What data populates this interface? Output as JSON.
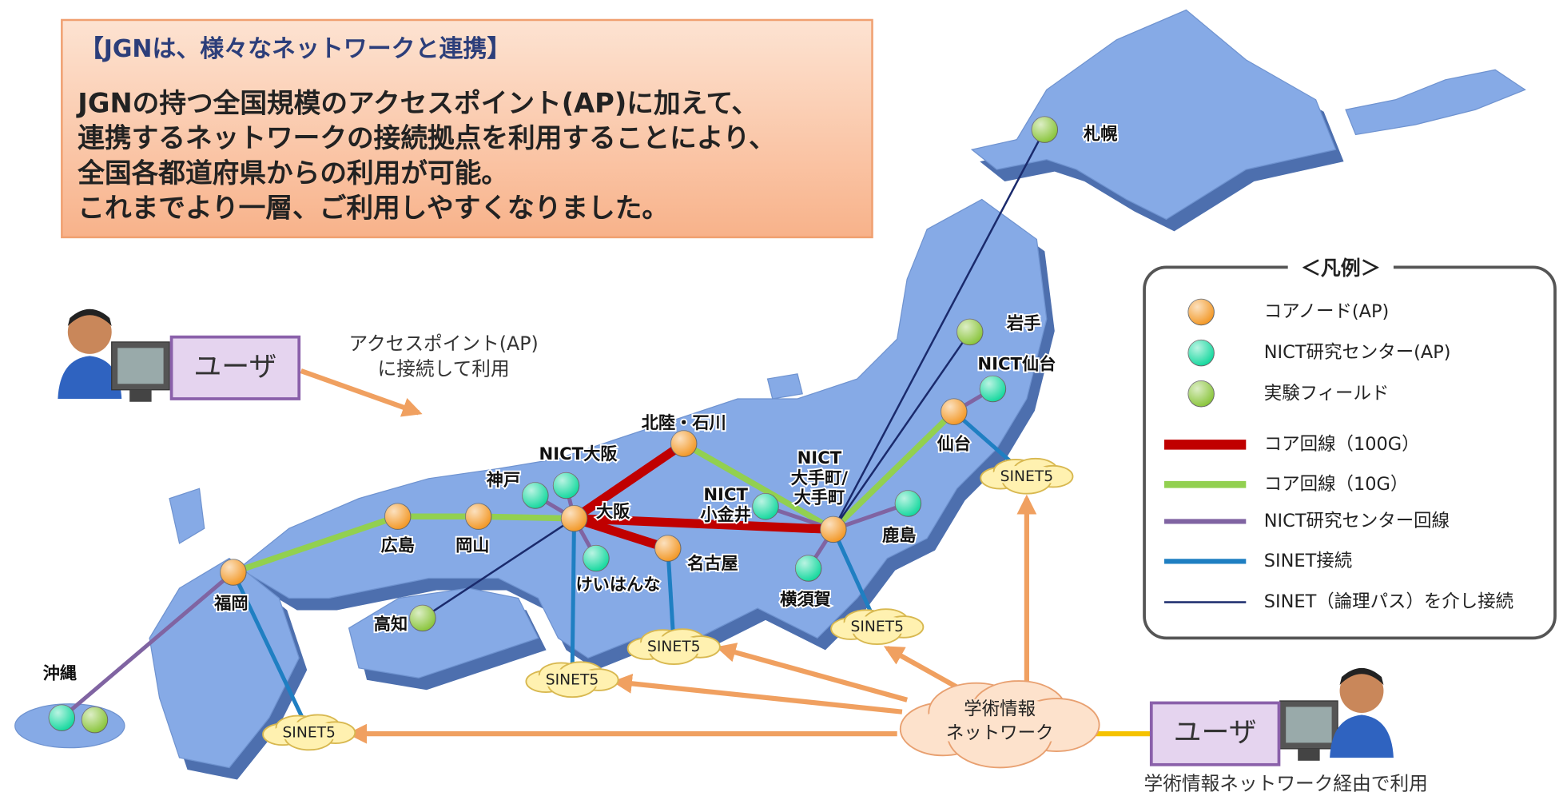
{
  "header": {
    "title": "【JGNは、様々なネットワークと連携】",
    "lines": [
      "JGNの持つ全国規模のアクセスポイント(AP)に加えて、",
      "連携するネットワークの接続拠点を利用することにより、",
      "全国各都道府県からの利用が可能。",
      "これまでより一層、ご利用しやすくなりました。"
    ]
  },
  "nodes": [
    {
      "label": [
        "札幌"
      ],
      "color": "#8cc63f"
    },
    {
      "label": [
        "岩手"
      ],
      "color": "#8cc63f"
    },
    {
      "label": [
        "NICT仙台"
      ],
      "color": "#19d9a0"
    },
    {
      "label": [
        "仙台"
      ],
      "color": "#f39a2a"
    },
    {
      "label": [
        "北陸・石川"
      ],
      "color": "#f39a2a"
    },
    {
      "label": [
        "NICT大阪"
      ],
      "color": "#19d9a0"
    },
    {
      "label": [
        "神戸"
      ],
      "color": "#19d9a0"
    },
    {
      "label": [
        "大阪"
      ],
      "color": "#f39a2a"
    },
    {
      "label": [
        "けいはんな"
      ],
      "color": "#19d9a0"
    },
    {
      "label": [
        "名古屋"
      ],
      "color": "#f39a2a"
    },
    {
      "label": [
        "NICT",
        "小金井"
      ],
      "color": "#19d9a0"
    },
    {
      "label": [
        "NICT",
        "大手町/",
        "大手町"
      ],
      "color": "#f39a2a"
    },
    {
      "label": [
        "鹿島"
      ],
      "color": "#19d9a0"
    },
    {
      "label": [
        "横須賀"
      ],
      "color": "#19d9a0"
    },
    {
      "label": [
        "広島"
      ],
      "color": "#f39a2a"
    },
    {
      "label": [
        "岡山"
      ],
      "color": "#f39a2a"
    },
    {
      "label": [
        "福岡"
      ],
      "color": "#f39a2a"
    },
    {
      "label": [
        "高知"
      ],
      "color": "#8cc63f"
    },
    {
      "label": [
        "沖縄"
      ],
      "color": "#19d9a0"
    },
    {
      "color": "#8cc63f"
    }
  ],
  "sinet": [
    "SINET5",
    "SINET5",
    "SINET5",
    "SINET5",
    "SINET5"
  ],
  "academic_network": [
    "学術情報",
    "ネットワーク"
  ],
  "users": [
    "ユーザ",
    "ユーザ"
  ],
  "annotations": {
    "access": [
      "アクセスポイント(AP)",
      "に接続して利用"
    ],
    "via": "学術情報ネットワーク経由で利用"
  },
  "legend": {
    "title": "＜凡例＞",
    "items": [
      {
        "label": "コアノード(AP)",
        "color": "#f39a2a"
      },
      {
        "label": "NICT研究センター(AP)",
        "color": "#19d9a0"
      },
      {
        "label": "実験フィールド",
        "color": "#8cc63f"
      },
      {
        "label": "コア回線（100G）",
        "color": "#c00000"
      },
      {
        "label": "コア回線（10G）",
        "color": "#92d050"
      },
      {
        "label": "NICT研究センター回線",
        "color": "#8064a2"
      },
      {
        "label": "SINET接続",
        "color": "#1f7fc2"
      },
      {
        "label": "SINET（論理パス）を介し接続",
        "color": "#1a2a6c"
      }
    ]
  }
}
